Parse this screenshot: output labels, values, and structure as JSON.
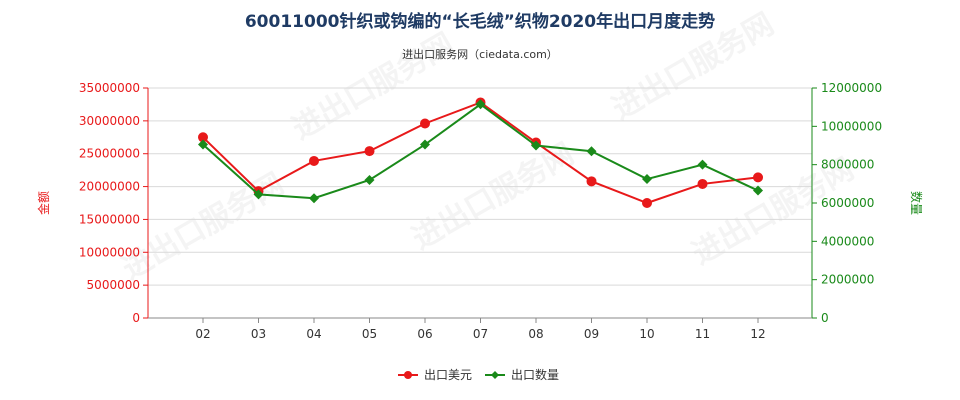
{
  "title": "60011000针织或钩编的“长毛绒”织物2020年出口月度走势",
  "subtitle": "进出口服务网（ciedata.com）",
  "watermark": "进出口服务网",
  "colors": {
    "left_axis": "#e8191a",
    "right_axis": "#1a8a1a",
    "title": "#1f3b64",
    "amount_series": "#e8191a",
    "quantity_series": "#1a8a1a"
  },
  "chart_data": {
    "type": "line",
    "categories": [
      "02",
      "03",
      "04",
      "05",
      "06",
      "07",
      "08",
      "09",
      "10",
      "11",
      "12"
    ],
    "ylabel_left": "金额",
    "ylabel_right": "数量",
    "ylim_left": [
      0,
      35000000
    ],
    "ylim_right": [
      0,
      12000000
    ],
    "yticks_left": [
      "0",
      "5000000",
      "10000000",
      "15000000",
      "20000000",
      "25000000",
      "30000000",
      "35000000"
    ],
    "yticks_right": [
      "0",
      "2000000",
      "4000000",
      "6000000",
      "8000000",
      "10000000",
      "12000000"
    ],
    "grid": true,
    "legend_position": "bottom",
    "series": [
      {
        "name": "出口美元",
        "axis": "left",
        "values": [
          27500000,
          19300000,
          23900000,
          25400000,
          29600000,
          32800000,
          26700000,
          20800000,
          17500000,
          20400000,
          21400000
        ]
      },
      {
        "name": "出口数量",
        "axis": "right",
        "values": [
          9050000,
          6450000,
          6250000,
          7200000,
          9050000,
          11150000,
          9000000,
          8700000,
          7250000,
          8000000,
          6650000
        ]
      }
    ]
  }
}
